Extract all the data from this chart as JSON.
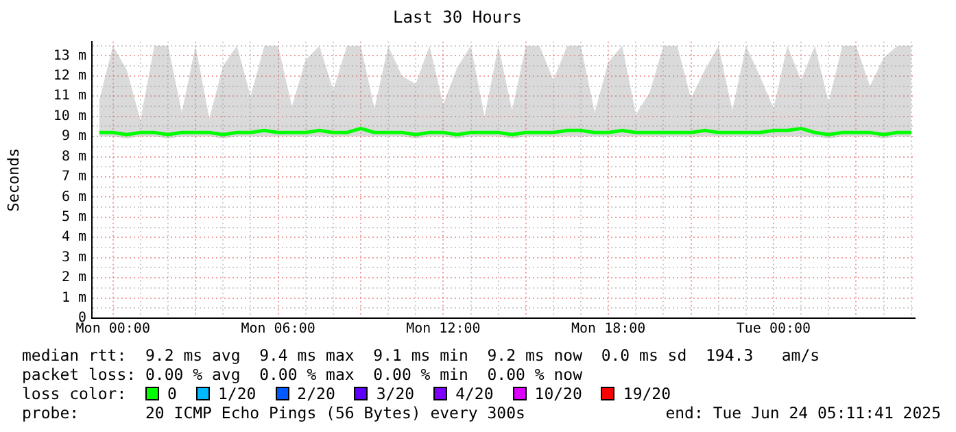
{
  "chart_data": {
    "type": "line",
    "title": "Last 30 Hours",
    "ylabel": "Seconds",
    "x": [
      "2025-06-22T23:30",
      "2025-06-23T00:00",
      "2025-06-23T00:30",
      "2025-06-23T01:00",
      "2025-06-23T01:30",
      "2025-06-23T02:00",
      "2025-06-23T02:30",
      "2025-06-23T03:00",
      "2025-06-23T03:30",
      "2025-06-23T04:00",
      "2025-06-23T04:30",
      "2025-06-23T05:00",
      "2025-06-23T05:30",
      "2025-06-23T06:00",
      "2025-06-23T06:30",
      "2025-06-23T07:00",
      "2025-06-23T07:30",
      "2025-06-23T08:00",
      "2025-06-23T08:30",
      "2025-06-23T09:00",
      "2025-06-23T09:30",
      "2025-06-23T10:00",
      "2025-06-23T10:30",
      "2025-06-23T11:00",
      "2025-06-23T11:30",
      "2025-06-23T12:00",
      "2025-06-23T12:30",
      "2025-06-23T13:00",
      "2025-06-23T13:30",
      "2025-06-23T14:00",
      "2025-06-23T14:30",
      "2025-06-23T15:00",
      "2025-06-23T15:30",
      "2025-06-23T16:00",
      "2025-06-23T16:30",
      "2025-06-23T17:00",
      "2025-06-23T17:30",
      "2025-06-23T18:00",
      "2025-06-23T18:30",
      "2025-06-23T19:00",
      "2025-06-23T19:30",
      "2025-06-23T20:00",
      "2025-06-23T20:30",
      "2025-06-23T21:00",
      "2025-06-23T21:30",
      "2025-06-23T22:00",
      "2025-06-23T22:30",
      "2025-06-23T23:00",
      "2025-06-23T23:30",
      "2025-06-24T00:00",
      "2025-06-24T00:30",
      "2025-06-24T01:00",
      "2025-06-24T01:30",
      "2025-06-24T02:00",
      "2025-06-24T02:30",
      "2025-06-24T03:00",
      "2025-06-24T03:30",
      "2025-06-24T04:00",
      "2025-06-24T04:30",
      "2025-06-24T05:00"
    ],
    "series": [
      {
        "name": "0",
        "color": "#00ff00",
        "values": [
          9.2,
          9.2,
          9.1,
          9.2,
          9.2,
          9.1,
          9.2,
          9.2,
          9.2,
          9.1,
          9.2,
          9.2,
          9.3,
          9.2,
          9.2,
          9.2,
          9.3,
          9.2,
          9.2,
          9.4,
          9.2,
          9.2,
          9.2,
          9.1,
          9.2,
          9.2,
          9.1,
          9.2,
          9.2,
          9.2,
          9.1,
          9.2,
          9.2,
          9.2,
          9.3,
          9.3,
          9.2,
          9.2,
          9.3,
          9.2,
          9.2,
          9.2,
          9.2,
          9.2,
          9.3,
          9.2,
          9.2,
          9.2,
          9.2,
          9.3,
          9.3,
          9.4,
          9.2,
          9.1,
          9.2,
          9.2,
          9.2,
          9.1,
          9.2,
          9.2
        ],
        "lower": [
          9.0,
          9.0,
          8.9,
          9.0,
          9.0,
          8.9,
          9.0,
          9.0,
          9.0,
          8.9,
          9.0,
          9.0,
          9.0,
          9.0,
          9.0,
          9.0,
          9.0,
          9.0,
          9.0,
          9.0,
          9.0,
          9.0,
          9.0,
          8.9,
          9.0,
          9.0,
          8.9,
          9.0,
          9.0,
          9.0,
          8.9,
          9.0,
          9.0,
          9.0,
          9.0,
          9.0,
          9.0,
          9.0,
          9.0,
          9.0,
          9.0,
          9.0,
          9.0,
          9.0,
          9.0,
          9.0,
          9.0,
          9.0,
          9.0,
          9.0,
          9.0,
          9.0,
          9.0,
          8.9,
          9.0,
          9.0,
          9.0,
          8.9,
          9.0,
          9.0
        ],
        "upper": [
          10.8,
          13.5,
          12.3,
          9.8,
          13.5,
          13.5,
          10.2,
          13.5,
          9.9,
          12.5,
          13.5,
          11.0,
          13.5,
          13.5,
          10.5,
          12.8,
          13.5,
          11.3,
          13.5,
          13.5,
          10.4,
          13.5,
          12.0,
          11.6,
          13.5,
          10.6,
          12.4,
          13.5,
          10.0,
          13.5,
          10.3,
          13.5,
          13.5,
          11.8,
          13.5,
          13.5,
          10.2,
          12.7,
          13.5,
          10.1,
          11.2,
          13.5,
          13.5,
          10.9,
          12.3,
          13.5,
          10.3,
          13.5,
          12.0,
          10.4,
          13.5,
          11.8,
          13.5,
          10.7,
          13.5,
          13.5,
          11.5,
          12.9,
          13.5,
          13.5
        ]
      },
      {
        "name": "1/20",
        "color": "#00b8ff",
        "values": [
          null,
          null,
          null,
          null,
          null,
          null,
          null,
          null,
          null,
          null,
          null,
          null,
          null,
          null,
          null,
          null,
          null,
          null,
          null,
          null,
          null,
          null,
          null,
          null,
          null,
          null,
          null,
          null,
          null,
          null,
          null,
          null,
          null,
          null,
          null,
          null,
          null,
          null,
          null,
          null,
          null,
          null,
          null,
          null,
          null,
          null,
          null,
          null,
          null,
          null,
          null,
          null,
          null,
          null,
          null,
          null,
          null,
          null,
          null,
          null
        ]
      },
      {
        "name": "2/20",
        "color": "#0059ff",
        "values": [
          null,
          null,
          null,
          null,
          null,
          null,
          null,
          null,
          null,
          null,
          null,
          null,
          null,
          null,
          null,
          null,
          null,
          null,
          null,
          null,
          null,
          null,
          null,
          null,
          null,
          null,
          null,
          null,
          null,
          null,
          null,
          null,
          null,
          null,
          null,
          null,
          null,
          null,
          null,
          null,
          null,
          null,
          null,
          null,
          null,
          null,
          null,
          null,
          null,
          null,
          null,
          null,
          null,
          null,
          null,
          null,
          null,
          null,
          null,
          null
        ]
      },
      {
        "name": "3/20",
        "color": "#5e00ff",
        "values": [
          null,
          null,
          null,
          null,
          null,
          null,
          null,
          null,
          null,
          null,
          null,
          null,
          null,
          null,
          null,
          null,
          null,
          null,
          null,
          null,
          null,
          null,
          null,
          null,
          null,
          null,
          null,
          null,
          null,
          null,
          null,
          null,
          null,
          null,
          null,
          null,
          null,
          null,
          null,
          null,
          null,
          null,
          null,
          null,
          null,
          null,
          null,
          null,
          null,
          null,
          null,
          null,
          null,
          null,
          null,
          null,
          null,
          null,
          null,
          null
        ]
      },
      {
        "name": "4/20",
        "color": "#7e00ff",
        "values": [
          null,
          null,
          null,
          null,
          null,
          null,
          null,
          null,
          null,
          null,
          null,
          null,
          null,
          null,
          null,
          null,
          null,
          null,
          null,
          null,
          null,
          null,
          null,
          null,
          null,
          null,
          null,
          null,
          null,
          null,
          null,
          null,
          null,
          null,
          null,
          null,
          null,
          null,
          null,
          null,
          null,
          null,
          null,
          null,
          null,
          null,
          null,
          null,
          null,
          null,
          null,
          null,
          null,
          null,
          null,
          null,
          null,
          null,
          null,
          null
        ]
      },
      {
        "name": "10/20",
        "color": "#dd00ff",
        "values": [
          null,
          null,
          null,
          null,
          null,
          null,
          null,
          null,
          null,
          null,
          null,
          null,
          null,
          null,
          null,
          null,
          null,
          null,
          null,
          null,
          null,
          null,
          null,
          null,
          null,
          null,
          null,
          null,
          null,
          null,
          null,
          null,
          null,
          null,
          null,
          null,
          null,
          null,
          null,
          null,
          null,
          null,
          null,
          null,
          null,
          null,
          null,
          null,
          null,
          null,
          null,
          null,
          null,
          null,
          null,
          null,
          null,
          null,
          null,
          null
        ]
      },
      {
        "name": "19/20",
        "color": "#ff0000",
        "values": [
          null,
          null,
          null,
          null,
          null,
          null,
          null,
          null,
          null,
          null,
          null,
          null,
          null,
          null,
          null,
          null,
          null,
          null,
          null,
          null,
          null,
          null,
          null,
          null,
          null,
          null,
          null,
          null,
          null,
          null,
          null,
          null,
          null,
          null,
          null,
          null,
          null,
          null,
          null,
          null,
          null,
          null,
          null,
          null,
          null,
          null,
          null,
          null,
          null,
          null,
          null,
          null,
          null,
          null,
          null,
          null,
          null,
          null,
          null,
          null
        ]
      }
    ],
    "xlim": [
      "2025-06-22T23:14",
      "2025-06-24T05:08"
    ],
    "xticks": [
      {
        "value": "2025-06-23T00:00",
        "label": "Mon 00:00"
      },
      {
        "value": "2025-06-23T01:00",
        "label": null
      },
      {
        "value": "2025-06-23T02:00",
        "label": null
      },
      {
        "value": "2025-06-23T03:00",
        "label": null
      },
      {
        "value": "2025-06-23T04:00",
        "label": null
      },
      {
        "value": "2025-06-23T05:00",
        "label": null
      },
      {
        "value": "2025-06-23T06:00",
        "label": "Mon 06:00"
      },
      {
        "value": "2025-06-23T07:00",
        "label": null
      },
      {
        "value": "2025-06-23T08:00",
        "label": null
      },
      {
        "value": "2025-06-23T09:00",
        "label": null
      },
      {
        "value": "2025-06-23T10:00",
        "label": null
      },
      {
        "value": "2025-06-23T11:00",
        "label": null
      },
      {
        "value": "2025-06-23T12:00",
        "label": "Mon 12:00"
      },
      {
        "value": "2025-06-23T13:00",
        "label": null
      },
      {
        "value": "2025-06-23T14:00",
        "label": null
      },
      {
        "value": "2025-06-23T15:00",
        "label": null
      },
      {
        "value": "2025-06-23T16:00",
        "label": null
      },
      {
        "value": "2025-06-23T17:00",
        "label": null
      },
      {
        "value": "2025-06-23T18:00",
        "label": "Mon 18:00"
      },
      {
        "value": "2025-06-23T19:00",
        "label": null
      },
      {
        "value": "2025-06-23T20:00",
        "label": null
      },
      {
        "value": "2025-06-23T21:00",
        "label": null
      },
      {
        "value": "2025-06-23T22:00",
        "label": null
      },
      {
        "value": "2025-06-23T23:00",
        "label": null
      },
      {
        "value": "2025-06-24T00:00",
        "label": "Tue 00:00"
      },
      {
        "value": "2025-06-24T01:00",
        "label": null
      },
      {
        "value": "2025-06-24T02:00",
        "label": null
      },
      {
        "value": "2025-06-24T03:00",
        "label": null
      },
      {
        "value": "2025-06-24T04:00",
        "label": null
      },
      {
        "value": "2025-06-24T05:00",
        "label": null
      }
    ],
    "ylim": [
      0,
      13.7
    ],
    "yticks": [
      0,
      {
        "value": 0.5,
        "label": null
      },
      {
        "value": 1,
        "label": "1 m"
      },
      {
        "value": 1.5,
        "label": null
      },
      {
        "value": 2,
        "label": "2 m"
      },
      {
        "value": 2.5,
        "label": null
      },
      {
        "value": 3,
        "label": "3 m"
      },
      {
        "value": 3.5,
        "label": null
      },
      {
        "value": 4,
        "label": "4 m"
      },
      {
        "value": 4.5,
        "label": null
      },
      {
        "value": 5,
        "label": "5 m"
      },
      {
        "value": 5.5,
        "label": null
      },
      {
        "value": 6,
        "label": "6 m"
      },
      {
        "value": 6.5,
        "label": null
      },
      {
        "value": 7,
        "label": "7 m"
      },
      {
        "value": 7.5,
        "label": null
      },
      {
        "value": 8,
        "label": "8 m"
      },
      {
        "value": 8.5,
        "label": null
      },
      {
        "value": 9,
        "label": "9 m"
      },
      {
        "value": 9.5,
        "label": null
      },
      {
        "value": 10,
        "label": "10 m"
      },
      {
        "value": 10.5,
        "label": null
      },
      {
        "value": 11,
        "label": "11 m"
      },
      {
        "value": 11.5,
        "label": null
      },
      {
        "value": 12,
        "label": "12 m"
      },
      {
        "value": 12.5,
        "label": null
      },
      {
        "value": 13,
        "label": "13 m"
      },
      {
        "value": 13.5,
        "label": null
      }
    ],
    "grid": true,
    "legend": "bottom",
    "marker": "none",
    "line_style": "solid",
    "annotations": [
      "median rtt:  9.2 ms avg  9.4 ms max  9.1 ms min  9.2 ms now  0.0 ms sd  194.3   am/s",
      "packet loss: 0.00 % avg  0.00 % max  0.00 % min  0.00 % now",
      "loss color:",
      "probe:       20 ICMP Echo Pings (56 Bytes) every 300s",
      "end: Tue Jun 24 05:11:41 2025"
    ]
  }
}
